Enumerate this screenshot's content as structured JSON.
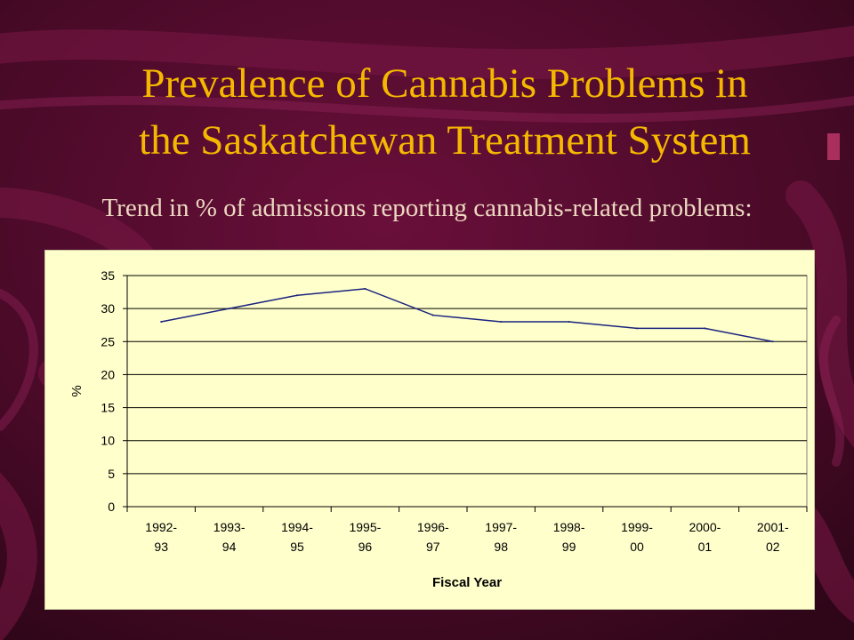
{
  "slide": {
    "title_line1": "Prevalence of Cannabis Problems in",
    "title_line2": "the Saskatchewan Treatment System",
    "subtitle": "Trend in % of admissions reporting cannabis-related problems:"
  },
  "colors": {
    "background": "#4a0a28",
    "title": "#f5b800",
    "subtitle": "#ecd8c0",
    "plot_background": "#ffffcc",
    "line": "#1a237e"
  },
  "chart_data": {
    "type": "line",
    "categories": [
      [
        "1992-",
        "93"
      ],
      [
        "1993-",
        "94"
      ],
      [
        "1994-",
        "95"
      ],
      [
        "1995-",
        "96"
      ],
      [
        "1996-",
        "97"
      ],
      [
        "1997-",
        "98"
      ],
      [
        "1998-",
        "99"
      ],
      [
        "1999-",
        "00"
      ],
      [
        "2000-",
        "01"
      ],
      [
        "2001-",
        "02"
      ]
    ],
    "values": [
      28,
      30,
      32,
      33,
      29,
      28,
      28,
      27,
      27,
      25
    ],
    "xlabel": "Fiscal Year",
    "ylabel": "%",
    "ylim": [
      0,
      35
    ],
    "yticks": [
      "0",
      "5",
      "10",
      "15",
      "20",
      "25",
      "30",
      "35"
    ],
    "grid": true,
    "legend": "none"
  }
}
